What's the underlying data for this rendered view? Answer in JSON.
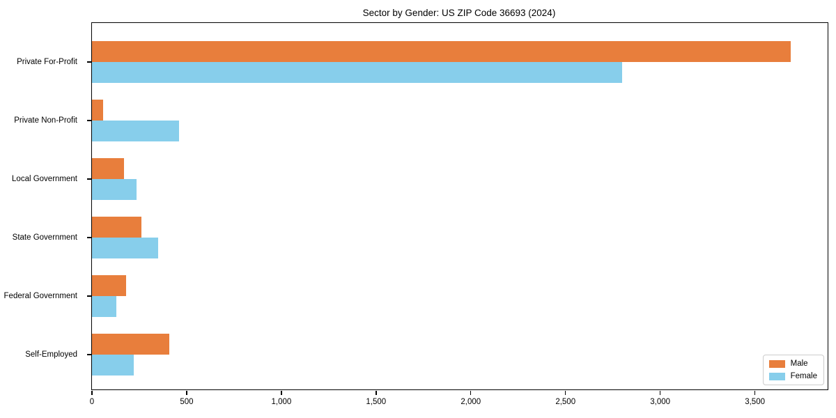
{
  "chart_data": {
    "type": "bar",
    "orientation": "horizontal",
    "title": "Sector by Gender: US ZIP Code 36693 (2024)",
    "categories": [
      "Private For-Profit",
      "Private Non-Profit",
      "Local Government",
      "State Government",
      "Federal Government",
      "Self-Employed"
    ],
    "series": [
      {
        "name": "Male",
        "color": "#E87E3C",
        "values": [
          3690,
          60,
          170,
          260,
          180,
          410
        ]
      },
      {
        "name": "Female",
        "color": "#87CEEB",
        "values": [
          2800,
          460,
          235,
          350,
          130,
          220
        ]
      }
    ],
    "xlabel": "",
    "ylabel": "",
    "xlim": [
      0,
      3884
    ],
    "xticks": [
      0,
      500,
      1000,
      1500,
      2000,
      2500,
      3000,
      3500
    ],
    "xtick_labels": [
      "0",
      "500",
      "1,000",
      "1,500",
      "2,000",
      "2,500",
      "3,000",
      "3,500"
    ],
    "grid": false,
    "legend": {
      "position": "lower right",
      "items": [
        "Male",
        "Female"
      ]
    }
  }
}
